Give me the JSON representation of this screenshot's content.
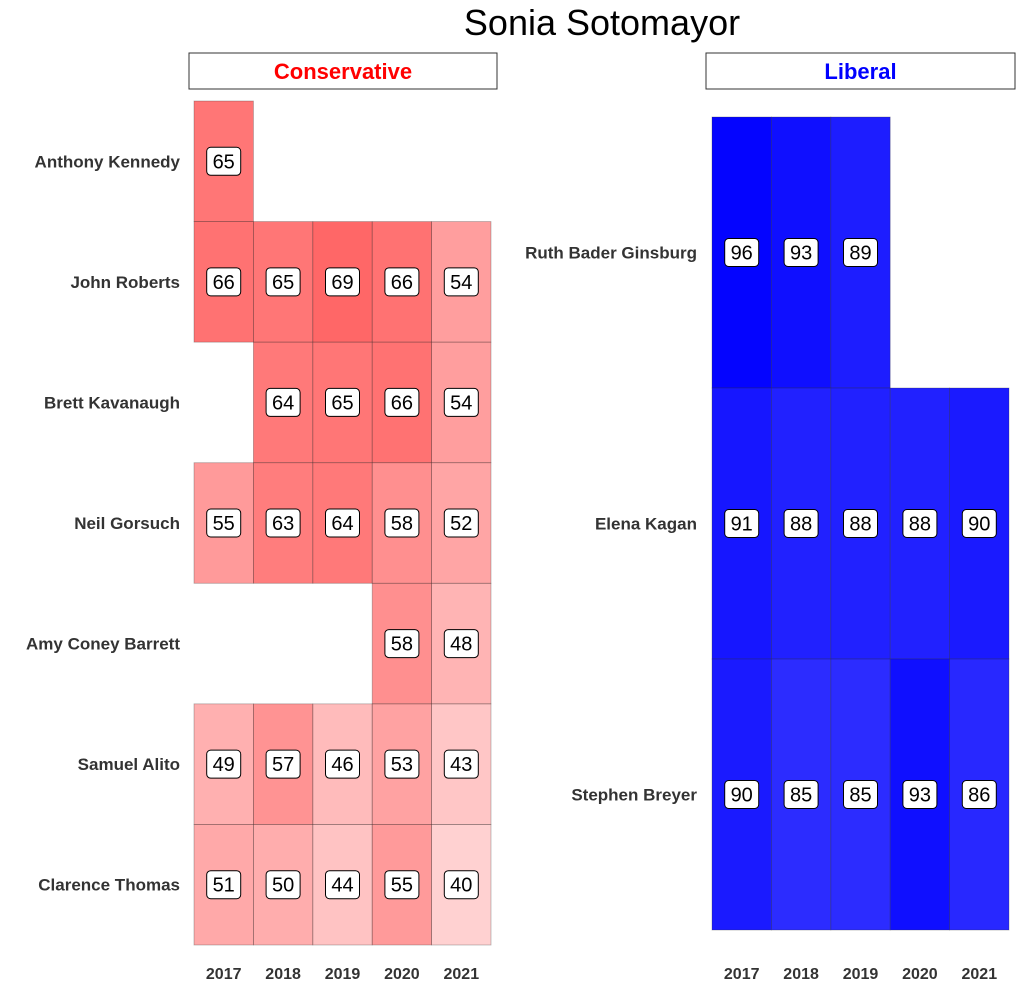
{
  "title": "Sonia Sotomayor",
  "chart_data": {
    "type": "heatmap",
    "title": "Sonia Sotomayor",
    "years": [
      "2017",
      "2018",
      "2019",
      "2020",
      "2021"
    ],
    "panels": [
      {
        "label": "Conservative",
        "label_color": "#ff0000",
        "fill_color": "#ff0000",
        "justices": [
          {
            "name": "Anthony Kennedy",
            "values": [
              65,
              null,
              null,
              null,
              null
            ]
          },
          {
            "name": "John Roberts",
            "values": [
              66,
              65,
              69,
              66,
              54
            ]
          },
          {
            "name": "Brett Kavanaugh",
            "values": [
              null,
              64,
              65,
              66,
              54
            ]
          },
          {
            "name": "Neil Gorsuch",
            "values": [
              55,
              63,
              64,
              58,
              52
            ]
          },
          {
            "name": "Amy Coney Barrett",
            "values": [
              null,
              null,
              null,
              58,
              48
            ]
          },
          {
            "name": "Samuel Alito",
            "values": [
              49,
              57,
              46,
              53,
              43
            ]
          },
          {
            "name": "Clarence Thomas",
            "values": [
              51,
              50,
              44,
              55,
              40
            ]
          }
        ]
      },
      {
        "label": "Liberal",
        "label_color": "#0000ff",
        "fill_color": "#0000ff",
        "justices": [
          {
            "name": "Ruth Bader Ginsburg",
            "values": [
              96,
              93,
              89,
              null,
              null
            ]
          },
          {
            "name": "Elena Kagan",
            "values": [
              91,
              88,
              88,
              88,
              90
            ]
          },
          {
            "name": "Stephen Breyer",
            "values": [
              90,
              85,
              85,
              93,
              86
            ]
          }
        ]
      }
    ]
  }
}
